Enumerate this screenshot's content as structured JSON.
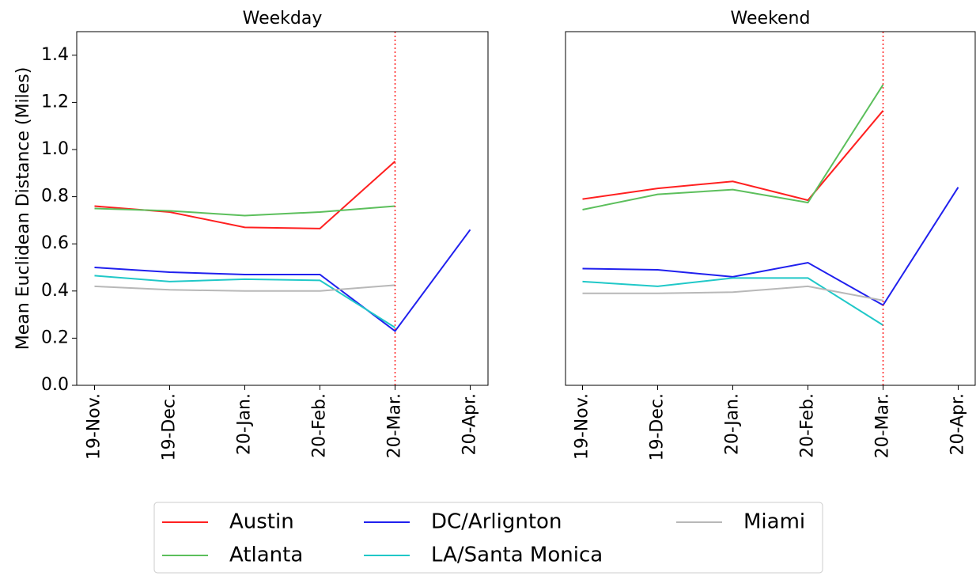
{
  "chart_data": [
    {
      "type": "line",
      "title": "Weekday",
      "ylabel": "Mean Euclidean Distance (Miles)",
      "categories": [
        "19-Nov.",
        "19-Dec.",
        "20-Jan.",
        "20-Feb.",
        "20-Mar.",
        "20-Apr."
      ],
      "series": [
        {
          "name": "Austin",
          "color": "#ff2020",
          "values": [
            0.76,
            0.735,
            0.67,
            0.665,
            0.95,
            null
          ]
        },
        {
          "name": "Atlanta",
          "color": "#5cbf5c",
          "values": [
            0.75,
            0.74,
            0.72,
            0.735,
            0.76,
            null
          ]
        },
        {
          "name": "DC/Arlignton",
          "color": "#2020ee",
          "values": [
            0.5,
            0.48,
            0.47,
            0.47,
            0.23,
            0.66
          ]
        },
        {
          "name": "LA/Santa Monica",
          "color": "#20c8c8",
          "values": [
            0.465,
            0.44,
            0.45,
            0.445,
            0.245,
            null
          ]
        },
        {
          "name": "Miami",
          "color": "#b8b8b8",
          "values": [
            0.42,
            0.405,
            0.4,
            0.4,
            0.425,
            null
          ]
        }
      ],
      "ylim": [
        0,
        1.5
      ],
      "yticks": [
        {
          "value": 0,
          "label": "0.0"
        },
        0.2,
        0.4,
        0.6,
        0.8,
        {
          "value": 1,
          "label": "1.0"
        },
        1.2,
        1.4
      ],
      "vline": {
        "x": "20-Mar.",
        "color": "#ff2020",
        "style": "dotted"
      }
    },
    {
      "type": "line",
      "title": "Weekend",
      "categories": [
        "19-Nov.",
        "19-Dec.",
        "20-Jan.",
        "20-Feb.",
        "20-Mar.",
        "20-Apr."
      ],
      "series": [
        {
          "name": "Austin",
          "color": "#ff2020",
          "values": [
            0.79,
            0.835,
            0.865,
            0.785,
            1.165,
            null
          ]
        },
        {
          "name": "Atlanta",
          "color": "#5cbf5c",
          "values": [
            0.745,
            0.81,
            0.83,
            0.775,
            1.275,
            null
          ]
        },
        {
          "name": "DC/Arlignton",
          "color": "#2020ee",
          "values": [
            0.495,
            0.49,
            0.46,
            0.52,
            0.34,
            0.84
          ]
        },
        {
          "name": "LA/Santa Monica",
          "color": "#20c8c8",
          "values": [
            0.44,
            0.42,
            0.455,
            0.455,
            0.255,
            null
          ]
        },
        {
          "name": "Miami",
          "color": "#b8b8b8",
          "values": [
            0.39,
            0.39,
            0.395,
            0.42,
            0.36,
            null
          ]
        }
      ],
      "ylim": [
        0,
        1.5
      ],
      "vline": {
        "x": "20-Mar.",
        "color": "#ff2020",
        "style": "dotted"
      }
    }
  ]
}
